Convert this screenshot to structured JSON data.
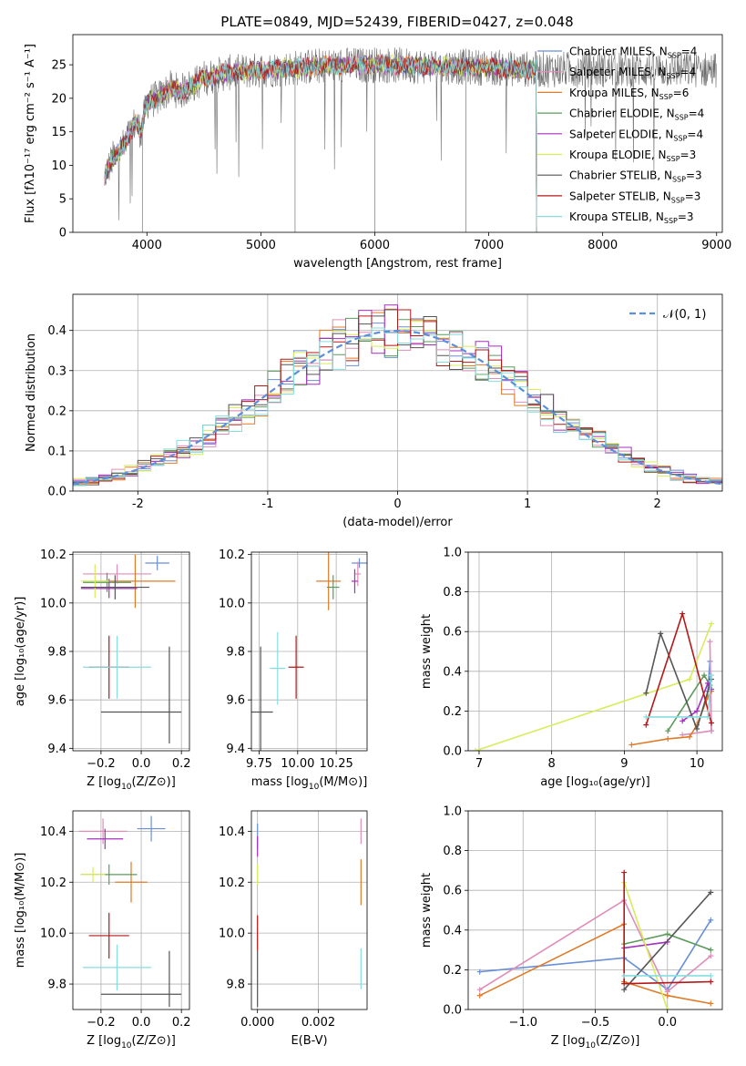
{
  "page": {
    "title": "PLATE=0849, MJD=52439, FIBERID=0427, z=0.048"
  },
  "colors": {
    "chabrier_miles": "#6a8fd6",
    "salpeter_miles": "#e08cb8",
    "kroupa_miles": "#e07b2a",
    "chabrier_elodie": "#5c9a5c",
    "salpeter_elodie": "#a62fbf",
    "kroupa_elodie": "#d8ec5a",
    "chabrier_stelib": "#555555",
    "salpeter_stelib": "#b51818",
    "kroupa_stelib": "#86dde0",
    "normal_curve": "#5b8fd9",
    "grid": "#b0b0b0"
  },
  "legend_models": [
    {
      "key": "chabrier_miles",
      "prefix": "Chabrier MILES, N",
      "sub": "SSP",
      "suffix": "=4"
    },
    {
      "key": "salpeter_miles",
      "prefix": "Salpeter MILES, N",
      "sub": "SSP",
      "suffix": "=4"
    },
    {
      "key": "kroupa_miles",
      "prefix": "Kroupa MILES, N",
      "sub": "SSP",
      "suffix": "=6"
    },
    {
      "key": "chabrier_elodie",
      "prefix": "Chabrier ELODIE, N",
      "sub": "SSP",
      "suffix": "=4"
    },
    {
      "key": "salpeter_elodie",
      "prefix": "Salpeter ELODIE, N",
      "sub": "SSP",
      "suffix": "=4"
    },
    {
      "key": "kroupa_elodie",
      "prefix": "Kroupa ELODIE, N",
      "sub": "SSP",
      "suffix": "=3"
    },
    {
      "key": "chabrier_stelib",
      "prefix": "Chabrier STELIB, N",
      "sub": "SSP",
      "suffix": "=3"
    },
    {
      "key": "salpeter_stelib",
      "prefix": "Salpeter STELIB, N",
      "sub": "SSP",
      "suffix": "=3"
    },
    {
      "key": "kroupa_stelib",
      "prefix": "Kroupa STELIB, N",
      "sub": "SSP",
      "suffix": "=3"
    }
  ],
  "chart_data": [
    {
      "id": "spectrum",
      "type": "line",
      "xlabel": "wavelength [Angstrom, rest frame]",
      "ylabel": "Flux [fλ10⁻¹⁷ erg cm⁻² s⁻¹ A⁻¹]",
      "xlim": [
        3350,
        9050
      ],
      "ylim": [
        0,
        29.5
      ],
      "xticks": [
        4000,
        5000,
        6000,
        7000,
        8000,
        9000
      ],
      "yticks": [
        0,
        5,
        10,
        15,
        20,
        25
      ],
      "continuum": {
        "x": [
          3630,
          3700,
          3800,
          3900,
          3950,
          4000,
          4100,
          4200,
          4300,
          4400,
          4500,
          4700,
          5000,
          5500,
          6000,
          6500,
          7000,
          7400
        ],
        "y": [
          8.5,
          11,
          13,
          16.5,
          15,
          19.5,
          20,
          21.5,
          21,
          22,
          23,
          23.8,
          24.2,
          24.8,
          25,
          24.8,
          24.6,
          24.3
        ]
      },
      "model_range": [
        3630,
        7420
      ],
      "observed_range": [
        3630,
        9000
      ]
    },
    {
      "id": "residuals",
      "type": "line",
      "xlabel": "(data-model)/error",
      "ylabel": "Normed distribution",
      "xlim": [
        -2.5,
        2.5
      ],
      "ylim": [
        0,
        0.49
      ],
      "xticks": [
        -2,
        -1,
        0,
        1,
        2
      ],
      "yticks": [
        0.0,
        0.1,
        0.2,
        0.3,
        0.4
      ],
      "grid": true,
      "legend": {
        "label_prefix": "𝒩",
        "label_suffix": "(0, 1)",
        "loc": "upper right"
      },
      "normal": {
        "mean": 0,
        "sigma": 1
      }
    },
    {
      "id": "age_vs_Z",
      "type": "scatter",
      "xlabel_main": "Z [log",
      "xlabel_sub": "10",
      "xlabel_tail": "(Z/Z⊙)]",
      "ylabel": "age  [log₁₀(age/yr)]",
      "xlim": [
        -0.34,
        0.24
      ],
      "ylim": [
        9.39,
        10.21
      ],
      "xticks": [
        -0.2,
        0.0,
        0.2
      ],
      "xticklabels": [
        "−0.2",
        "0.0",
        "0.2"
      ],
      "yticks": [
        9.4,
        9.6,
        9.8,
        10.0,
        10.2
      ],
      "points": [
        {
          "model": "chabrier_miles",
          "x": 0.08,
          "y": 10.165,
          "xerr": 0.06,
          "yerr": 0.03
        },
        {
          "model": "salpeter_miles",
          "x": -0.12,
          "y": 10.12,
          "xerr": 0.17,
          "yerr": 0.04
        },
        {
          "model": "kroupa_miles",
          "x": -0.03,
          "y": 10.09,
          "xerr": 0.2,
          "yerr": 0.11
        },
        {
          "model": "chabrier_elodie",
          "x": -0.17,
          "y": 10.085,
          "xerr": 0.12,
          "yerr": 0.04
        },
        {
          "model": "salpeter_elodie",
          "x": -0.16,
          "y": 10.06,
          "xerr": 0.14,
          "yerr": 0.04
        },
        {
          "model": "kroupa_elodie",
          "x": -0.23,
          "y": 10.09,
          "xerr": 0.07,
          "yerr": 0.07
        },
        {
          "model": "chabrier_stelib",
          "x": -0.13,
          "y": 10.065,
          "xerr": 0.17,
          "yerr": 0.05
        },
        {
          "model": "chabrier_stelib",
          "x": 0.0,
          "y": 9.55,
          "xerr": 0.2,
          "yerr": 0.0
        },
        {
          "model": "chabrier_stelib",
          "x": 0.14,
          "y": 9.62,
          "xerr": 0.0,
          "yerr": 0.2
        },
        {
          "model": "salpeter_stelib",
          "x": -0.16,
          "y": 9.735,
          "xerr": 0.1,
          "yerr": 0.13
        },
        {
          "model": "kroupa_stelib",
          "x": -0.12,
          "y": 9.735,
          "xerr": 0.17,
          "yerr": 0.13
        }
      ]
    },
    {
      "id": "age_vs_mass",
      "type": "scatter",
      "xlabel_main": "mass [log",
      "xlabel_sub": "10",
      "xlabel_tail": "(M/M⊙)]",
      "xlim": [
        9.7,
        10.45
      ],
      "ylim": [
        9.39,
        10.21
      ],
      "xticks": [
        9.75,
        10.0,
        10.25
      ],
      "xticklabels": [
        "9.75",
        "10.00",
        "10.25"
      ],
      "yticks": [
        9.4,
        9.6,
        9.8,
        10.0,
        10.2
      ],
      "points": [
        {
          "model": "chabrier_miles",
          "x": 10.4,
          "y": 10.165,
          "xerr": 0.05,
          "yerr": 0.02
        },
        {
          "model": "salpeter_miles",
          "x": 10.39,
          "y": 10.12,
          "xerr": 0.02,
          "yerr": 0.05
        },
        {
          "model": "kroupa_miles",
          "x": 10.2,
          "y": 10.09,
          "xerr": 0.08,
          "yerr": 0.12
        },
        {
          "model": "chabrier_elodie",
          "x": 10.23,
          "y": 10.065,
          "xerr": 0.04,
          "yerr": 0.05
        },
        {
          "model": "salpeter_elodie",
          "x": 10.37,
          "y": 10.09,
          "xerr": 0.02,
          "yerr": 0.05
        },
        {
          "model": "chabrier_stelib",
          "x": 9.76,
          "y": 9.55,
          "xerr": 0.08,
          "yerr": 0.27
        },
        {
          "model": "salpeter_stelib",
          "x": 9.99,
          "y": 9.735,
          "xerr": 0.05,
          "yerr": 0.13
        },
        {
          "model": "kroupa_stelib",
          "x": 9.87,
          "y": 9.73,
          "xerr": 0.05,
          "yerr": 0.15
        }
      ]
    },
    {
      "id": "weight_vs_age",
      "type": "line",
      "xlabel": "age  [log₁₀(age/yr)]",
      "ylabel": "mass weight",
      "xlim": [
        6.85,
        10.35
      ],
      "ylim": [
        0,
        1.0
      ],
      "xticks": [
        7,
        8,
        9,
        10
      ],
      "yticks": [
        0.0,
        0.2,
        0.4,
        0.6,
        0.8,
        1.0
      ],
      "grid": true,
      "series": [
        {
          "model": "chabrier_miles",
          "x": [
            10.2,
            10.18,
            10.15
          ],
          "y": [
            0.1,
            0.45,
            0.3
          ]
        },
        {
          "model": "salpeter_miles",
          "x": [
            9.8,
            10.2,
            10.18
          ],
          "y": [
            0.08,
            0.1,
            0.55
          ]
        },
        {
          "model": "kroupa_miles",
          "x": [
            9.1,
            9.6,
            9.9,
            10.0,
            10.15,
            10.2
          ],
          "y": [
            0.03,
            0.06,
            0.07,
            0.13,
            0.27,
            0.3
          ]
        },
        {
          "model": "chabrier_elodie",
          "x": [
            9.6,
            10.1,
            10.18
          ],
          "y": [
            0.1,
            0.38,
            0.33
          ]
        },
        {
          "model": "salpeter_elodie",
          "x": [
            9.8,
            10.0,
            10.15,
            10.2
          ],
          "y": [
            0.15,
            0.2,
            0.34,
            0.31
          ]
        },
        {
          "model": "kroupa_elodie",
          "x": [
            6.95,
            9.9,
            10.2
          ],
          "y": [
            0.0,
            0.36,
            0.64
          ]
        },
        {
          "model": "chabrier_stelib",
          "x": [
            9.3,
            9.5,
            10.0,
            10.2
          ],
          "y": [
            0.29,
            0.59,
            0.11,
            0.36
          ]
        },
        {
          "model": "salpeter_stelib",
          "x": [
            9.3,
            9.8,
            10.2
          ],
          "y": [
            0.13,
            0.69,
            0.14
          ]
        },
        {
          "model": "kroupa_stelib",
          "x": [
            9.3,
            10.15,
            10.2
          ],
          "y": [
            0.17,
            0.17,
            0.38
          ]
        }
      ]
    },
    {
      "id": "mass_vs_Z",
      "type": "scatter",
      "xlabel_main": "Z [log",
      "xlabel_sub": "10",
      "xlabel_tail": "(Z/Z⊙)]",
      "ylabel": "mass [log₁₀(M/M⊙)]",
      "xlim": [
        -0.34,
        0.24
      ],
      "ylim": [
        9.7,
        10.48
      ],
      "xticks": [
        -0.2,
        0.0,
        0.2
      ],
      "xticklabels": [
        "−0.2",
        "0.0",
        "0.2"
      ],
      "yticks": [
        9.8,
        10.0,
        10.2,
        10.4
      ],
      "points": [
        {
          "model": "chabrier_miles",
          "x": 0.05,
          "y": 10.41,
          "xerr": 0.07,
          "yerr": 0.05
        },
        {
          "model": "salpeter_miles",
          "x": -0.19,
          "y": 10.4,
          "xerr": 0.12,
          "yerr": 0.05
        },
        {
          "model": "kroupa_miles",
          "x": -0.05,
          "y": 10.2,
          "xerr": 0.08,
          "yerr": 0.08
        },
        {
          "model": "chabrier_elodie",
          "x": -0.16,
          "y": 10.23,
          "xerr": 0.14,
          "yerr": 0.04
        },
        {
          "model": "salpeter_elodie",
          "x": -0.18,
          "y": 10.37,
          "xerr": 0.09,
          "yerr": 0.04
        },
        {
          "model": "kroupa_elodie",
          "x": -0.24,
          "y": 10.23,
          "xerr": 0.06,
          "yerr": 0.03
        },
        {
          "model": "chabrier_stelib",
          "x": 0.0,
          "y": 9.76,
          "xerr": 0.2,
          "yerr": 0.0
        },
        {
          "model": "chabrier_stelib",
          "x": 0.14,
          "y": 9.82,
          "xerr": 0.0,
          "yerr": 0.11
        },
        {
          "model": "salpeter_stelib",
          "x": -0.16,
          "y": 9.99,
          "xerr": 0.1,
          "yerr": 0.09
        },
        {
          "model": "kroupa_stelib",
          "x": -0.12,
          "y": 9.865,
          "xerr": 0.17,
          "yerr": 0.09
        }
      ]
    },
    {
      "id": "mass_vs_ebv",
      "type": "scatter",
      "xlabel": "E(B-V)",
      "xlim": [
        -0.0002,
        0.0036
      ],
      "ylim": [
        9.7,
        10.48
      ],
      "xticks": [
        0.0,
        0.002
      ],
      "xticklabels": [
        "0.000",
        "0.002"
      ],
      "yticks": [
        9.8,
        10.0,
        10.2,
        10.4
      ],
      "points": [
        {
          "model": "chabrier_miles",
          "x": 0.0,
          "y": 10.38,
          "xerr": 0.0,
          "yerr": 0.05
        },
        {
          "model": "salpeter_elodie",
          "x": 0.0,
          "y": 10.34,
          "xerr": 0.0,
          "yerr": 0.04
        },
        {
          "model": "kroupa_elodie",
          "x": 0.0,
          "y": 10.23,
          "xerr": 0.0,
          "yerr": 0.04
        },
        {
          "model": "salpeter_stelib",
          "x": 0.0,
          "y": 10.0,
          "xerr": 0.0,
          "yerr": 0.07
        },
        {
          "model": "chabrier_stelib",
          "x": 0.0,
          "y": 9.82,
          "xerr": 0.0,
          "yerr": 0.11
        },
        {
          "model": "salpeter_miles",
          "x": 0.0034,
          "y": 10.4,
          "xerr": 0.0,
          "yerr": 0.05
        },
        {
          "model": "kroupa_miles",
          "x": 0.0034,
          "y": 10.2,
          "xerr": 0.0,
          "yerr": 0.09
        },
        {
          "model": "kroupa_stelib",
          "x": 0.0034,
          "y": 9.86,
          "xerr": 0.0,
          "yerr": 0.08
        }
      ]
    },
    {
      "id": "weight_vs_Z",
      "type": "line",
      "xlabel_main": "Z [log",
      "xlabel_sub": "10",
      "xlabel_tail": "(Z/Z⊙)]",
      "ylabel": "mass weight",
      "xlim": [
        -1.38,
        0.38
      ],
      "ylim": [
        0,
        1.0
      ],
      "xticks": [
        -1.0,
        -0.5,
        0.0
      ],
      "xticklabels": [
        "−1.0",
        "−0.5",
        "0.0"
      ],
      "yticks": [
        0.0,
        0.2,
        0.4,
        0.6,
        0.8,
        1.0
      ],
      "grid": true,
      "series": [
        {
          "model": "chabrier_miles",
          "x": [
            -1.3,
            -0.3,
            0.0,
            0.3
          ],
          "y": [
            0.19,
            0.26,
            0.1,
            0.45
          ]
        },
        {
          "model": "salpeter_miles",
          "x": [
            -1.3,
            -0.3,
            0.0,
            0.3
          ],
          "y": [
            0.1,
            0.55,
            0.09,
            0.27
          ]
        },
        {
          "model": "kroupa_miles",
          "x": [
            -1.3,
            -0.3,
            -0.3,
            0.0,
            0.3
          ],
          "y": [
            0.07,
            0.43,
            0.14,
            0.07,
            0.03
          ]
        },
        {
          "model": "chabrier_elodie",
          "x": [
            -0.3,
            0.0,
            0.3
          ],
          "y": [
            0.33,
            0.38,
            0.3
          ]
        },
        {
          "model": "salpeter_elodie",
          "x": [
            -0.3,
            0.0
          ],
          "y": [
            0.31,
            0.34
          ]
        },
        {
          "model": "kroupa_elodie",
          "x": [
            -0.3,
            0.0
          ],
          "y": [
            0.64,
            0.0
          ]
        },
        {
          "model": "chabrier_stelib",
          "x": [
            -0.3,
            0.3
          ],
          "y": [
            0.1,
            0.59
          ]
        },
        {
          "model": "salpeter_stelib",
          "x": [
            -0.3,
            -0.3,
            0.3
          ],
          "y": [
            0.69,
            0.13,
            0.14
          ]
        },
        {
          "model": "kroupa_stelib",
          "x": [
            -0.3,
            0.3
          ],
          "y": [
            0.17,
            0.17
          ]
        }
      ]
    }
  ]
}
